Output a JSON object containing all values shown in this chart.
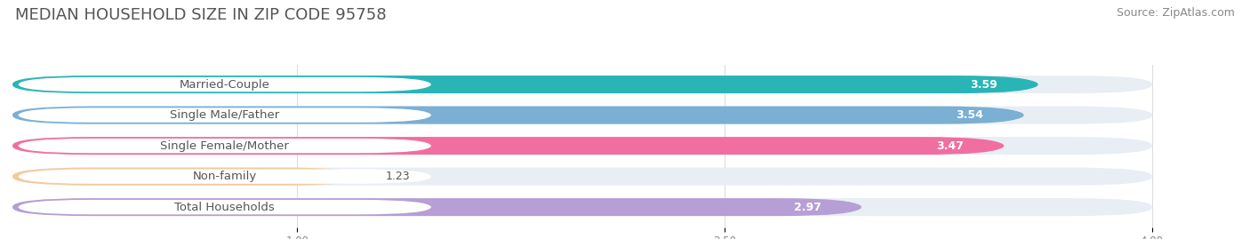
{
  "title": "MEDIAN HOUSEHOLD SIZE IN ZIP CODE 95758",
  "source": "Source: ZipAtlas.com",
  "categories": [
    "Married-Couple",
    "Single Male/Father",
    "Single Female/Mother",
    "Non-family",
    "Total Households"
  ],
  "values": [
    3.59,
    3.54,
    3.47,
    1.23,
    2.97
  ],
  "bar_colors": [
    "#29b5b5",
    "#7bafd4",
    "#f06fa0",
    "#f5c99a",
    "#b59fd4"
  ],
  "bar_bg_color": "#e8eef4",
  "value_bg_colors": [
    "#29b5b5",
    "#7bafd4",
    "#f06fa0",
    "#555555",
    "#b59fd4"
  ],
  "label_text_colors": [
    "#555555",
    "#555555",
    "#555555",
    "#555555",
    "#555555"
  ],
  "value_text_colors": [
    "#ffffff",
    "#ffffff",
    "#ffffff",
    "#555555",
    "#ffffff"
  ],
  "xlim": [
    0,
    4.3
  ],
  "data_max": 4.0,
  "xticks": [
    1.0,
    2.5,
    4.0
  ],
  "title_fontsize": 13,
  "source_fontsize": 9,
  "label_fontsize": 9.5,
  "value_fontsize": 9,
  "background_color": "#ffffff",
  "bar_height": 0.58,
  "rounding_size": 0.28
}
